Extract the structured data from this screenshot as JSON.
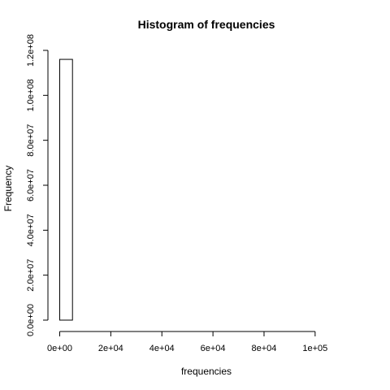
{
  "chart_data": {
    "type": "bar",
    "title": "Histogram of frequencies",
    "xlabel": "frequencies",
    "ylabel": "Frequency",
    "bins": [
      {
        "x0": 0,
        "x1": 5000,
        "count": 116000000
      },
      {
        "x0": 5000,
        "x1": 10000,
        "count": 0
      },
      {
        "x0": 10000,
        "x1": 15000,
        "count": 0
      },
      {
        "x0": 15000,
        "x1": 20000,
        "count": 0
      },
      {
        "x0": 20000,
        "x1": 25000,
        "count": 0
      },
      {
        "x0": 25000,
        "x1": 30000,
        "count": 0
      },
      {
        "x0": 30000,
        "x1": 35000,
        "count": 0
      },
      {
        "x0": 35000,
        "x1": 40000,
        "count": 0
      },
      {
        "x0": 40000,
        "x1": 45000,
        "count": 0
      },
      {
        "x0": 45000,
        "x1": 50000,
        "count": 0
      },
      {
        "x0": 50000,
        "x1": 55000,
        "count": 0
      },
      {
        "x0": 55000,
        "x1": 60000,
        "count": 0
      },
      {
        "x0": 60000,
        "x1": 65000,
        "count": 0
      },
      {
        "x0": 65000,
        "x1": 70000,
        "count": 0
      },
      {
        "x0": 70000,
        "x1": 75000,
        "count": 0
      },
      {
        "x0": 75000,
        "x1": 80000,
        "count": 0
      },
      {
        "x0": 80000,
        "x1": 85000,
        "count": 0
      },
      {
        "x0": 85000,
        "x1": 90000,
        "count": 0
      },
      {
        "x0": 90000,
        "x1": 95000,
        "count": 0
      },
      {
        "x0": 95000,
        "x1": 100000,
        "count": 0
      },
      {
        "x0": 100000,
        "x1": 105000,
        "count": 0
      },
      {
        "x0": 105000,
        "x1": 110000,
        "count": 0
      },
      {
        "x0": 110000,
        "x1": 115000,
        "count": 0
      }
    ],
    "xlim": [
      0,
      115000
    ],
    "ylim": [
      0,
      120000000
    ],
    "xticks": [
      {
        "value": 0,
        "label": "0e+00"
      },
      {
        "value": 20000,
        "label": "2e+04"
      },
      {
        "value": 40000,
        "label": "4e+04"
      },
      {
        "value": 60000,
        "label": "6e+04"
      },
      {
        "value": 80000,
        "label": "8e+04"
      },
      {
        "value": 100000,
        "label": "1e+05"
      }
    ],
    "yticks": [
      {
        "value": 0,
        "label": "0.0e+00"
      },
      {
        "value": 20000000,
        "label": "2.0e+07"
      },
      {
        "value": 40000000,
        "label": "4.0e+07"
      },
      {
        "value": 60000000,
        "label": "6.0e+07"
      },
      {
        "value": 80000000,
        "label": "8.0e+07"
      },
      {
        "value": 100000000,
        "label": "1.0e+08"
      },
      {
        "value": 120000000,
        "label": "1.2e+08"
      }
    ],
    "grid": false,
    "legend": "none"
  }
}
